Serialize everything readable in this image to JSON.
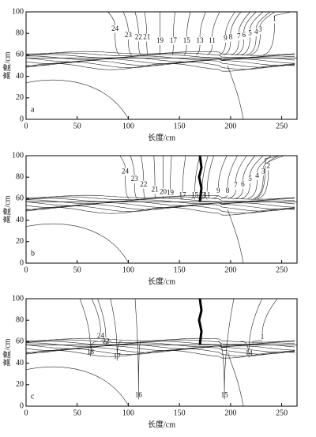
{
  "chart_data": [
    {
      "type": "contour",
      "panel_label": "a",
      "xlabel": "长度/cm",
      "ylabel": "高度/cm",
      "xlim": [
        0,
        265
      ],
      "ylim": [
        0,
        100
      ],
      "xticks": [
        0,
        50,
        100,
        150,
        200,
        250
      ],
      "yticks": [
        0,
        20,
        40,
        60,
        80,
        100
      ],
      "levels": [
        24,
        23,
        22,
        21,
        19,
        17,
        15,
        13,
        11,
        9,
        8,
        7,
        6,
        5,
        4,
        3,
        1
      ],
      "label_x": [
        87,
        100,
        110,
        118,
        131,
        144,
        157,
        170,
        182,
        195,
        200,
        208,
        213,
        219,
        225,
        229,
        243
      ],
      "label_y": [
        84,
        78,
        76,
        76,
        73,
        73,
        73,
        73,
        73,
        75,
        76,
        77,
        78,
        80,
        81,
        83,
        93
      ],
      "color": "#222222"
    },
    {
      "type": "contour",
      "panel_label": "b",
      "xlabel": "长度/cm",
      "ylabel": "高度/cm",
      "xlim": [
        0,
        265
      ],
      "ylim": [
        0,
        100
      ],
      "xticks": [
        0,
        50,
        100,
        150,
        200,
        250
      ],
      "yticks": [
        0,
        20,
        40,
        60,
        80,
        100
      ],
      "levels": [
        24,
        23,
        22,
        21,
        20,
        19,
        17,
        15,
        13,
        11,
        9,
        8,
        7,
        6,
        5,
        4,
        3,
        2,
        1
      ],
      "label_x": [
        97,
        106,
        115,
        126,
        134,
        141,
        153,
        165,
        172,
        177,
        188,
        197,
        205,
        212,
        219,
        226,
        232,
        237,
        234
      ],
      "label_y": [
        85,
        78,
        73,
        68,
        66,
        65,
        63,
        63,
        63,
        63,
        67,
        67,
        72,
        73,
        78,
        81,
        85,
        90,
        94
      ],
      "color": "#222222"
    },
    {
      "type": "contour",
      "panel_label": "c",
      "xlabel": "长度/cm",
      "ylabel": "高度/cm",
      "xlim": [
        0,
        265
      ],
      "ylim": [
        0,
        100
      ],
      "xticks": [
        0,
        50,
        100,
        150,
        200,
        250
      ],
      "yticks": [
        0,
        20,
        40,
        60,
        80,
        100
      ],
      "levels": [
        24,
        22,
        18,
        17,
        16,
        15,
        14,
        1
      ],
      "label_x": [
        73,
        78,
        63,
        89,
        110,
        194,
        218,
        231
      ],
      "label_y": [
        65,
        60,
        50,
        46,
        10,
        10,
        49,
        64
      ],
      "color": "#222222"
    }
  ]
}
